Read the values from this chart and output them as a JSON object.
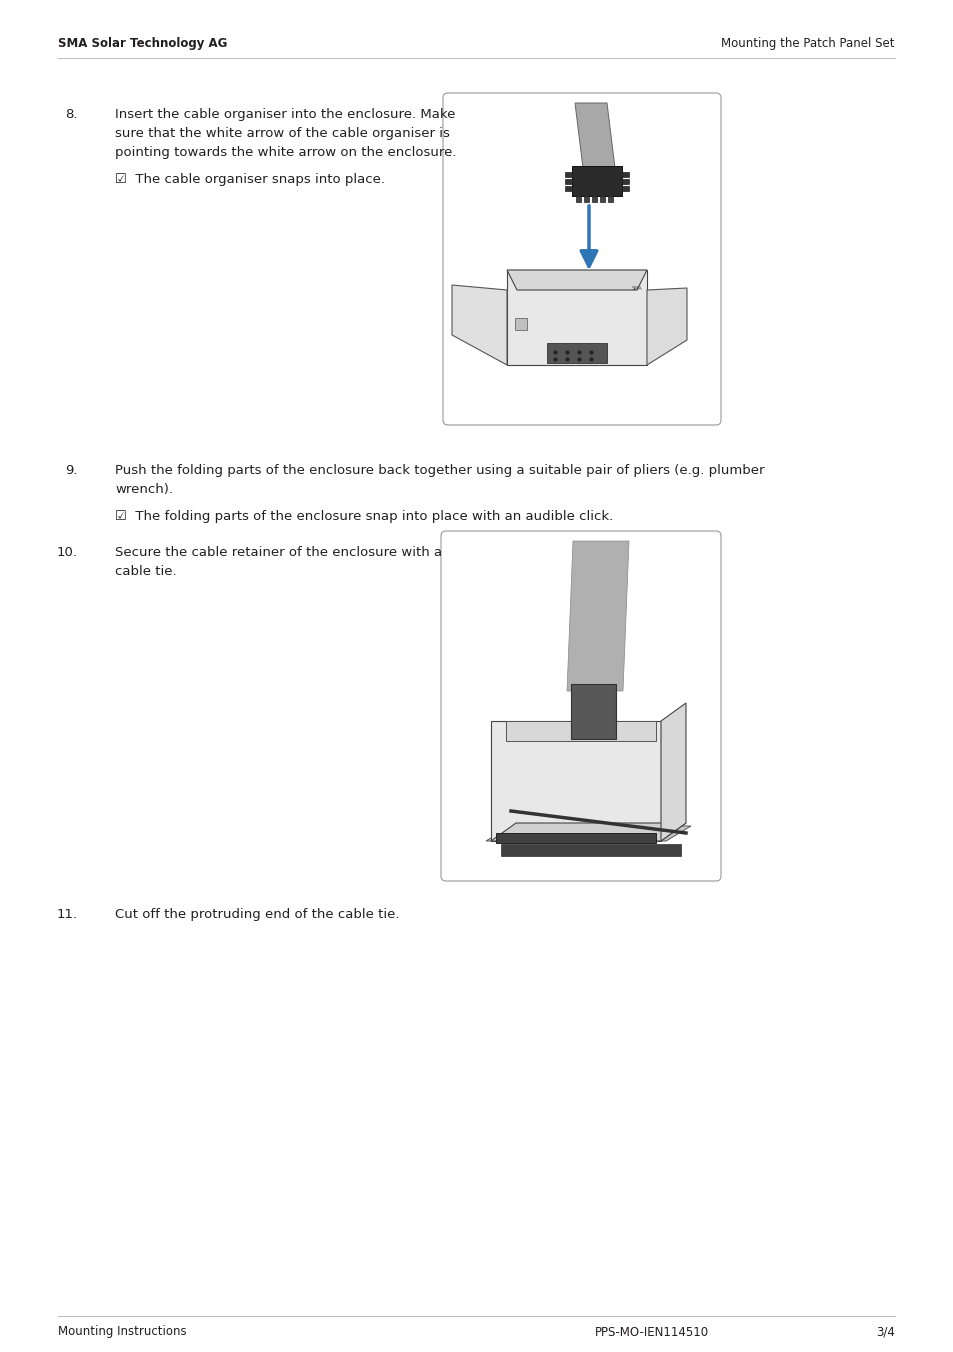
{
  "bg_color": "#ffffff",
  "header_left": "SMA Solar Technology AG",
  "header_right": "Mounting the Patch Panel Set",
  "footer_left": "Mounting Instructions",
  "footer_center": "PPS-MO-IEN114510",
  "footer_right": "3/4",
  "step8_number": "8.",
  "step8_text_lines": [
    "Insert the cable organiser into the enclosure. Make",
    "sure that the white arrow of the cable organiser is",
    "pointing towards the white arrow on the enclosure."
  ],
  "step8_check": "☑  The cable organiser snaps into place.",
  "step9_number": "9.",
  "step9_text_line1": "Push the folding parts of the enclosure back together using a suitable pair of pliers (e.g. plumber",
  "step9_text_line2": "wrench).",
  "step9_check": "☑  The folding parts of the enclosure snap into place with an audible click.",
  "step10_number": "10.",
  "step10_text_lines": [
    "Secure the cable retainer of the enclosure with a",
    "cable tie."
  ],
  "step11_number": "11.",
  "step11_text": "Cut off the protruding end of the cable tie.",
  "font_size_header": 8.5,
  "font_size_body": 9.5,
  "font_size_footer": 8.5,
  "text_color": "#231f20",
  "line_color": "#bbbbbb",
  "img_border_color": "#999999",
  "img_bg": "#ffffff"
}
